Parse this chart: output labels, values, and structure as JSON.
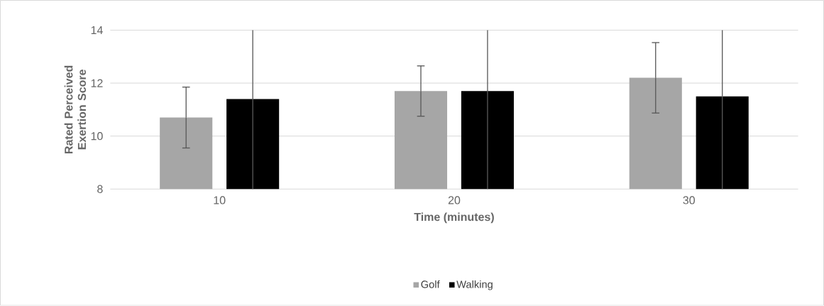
{
  "chart_data": {
    "type": "bar",
    "xlabel": "Time (minutes)",
    "ylabel": "Rated Perceived Exertion Score",
    "categories": [
      "10",
      "20",
      "30"
    ],
    "series": [
      {
        "name": "Golf",
        "color": "#a6a6a6",
        "values": [
          10.7,
          11.7,
          12.2
        ],
        "errors": [
          1.15,
          0.95,
          1.33
        ]
      },
      {
        "name": "Walking",
        "color": "#000000",
        "values": [
          11.4,
          11.7,
          11.5
        ],
        "errors": [
          [
            8,
            14
          ],
          [
            8,
            14
          ],
          [
            8,
            14
          ]
        ]
      }
    ],
    "ylim": [
      8,
      14
    ],
    "yticks": [
      8,
      10,
      12,
      14
    ],
    "grid": "y",
    "legend": "bottom"
  }
}
